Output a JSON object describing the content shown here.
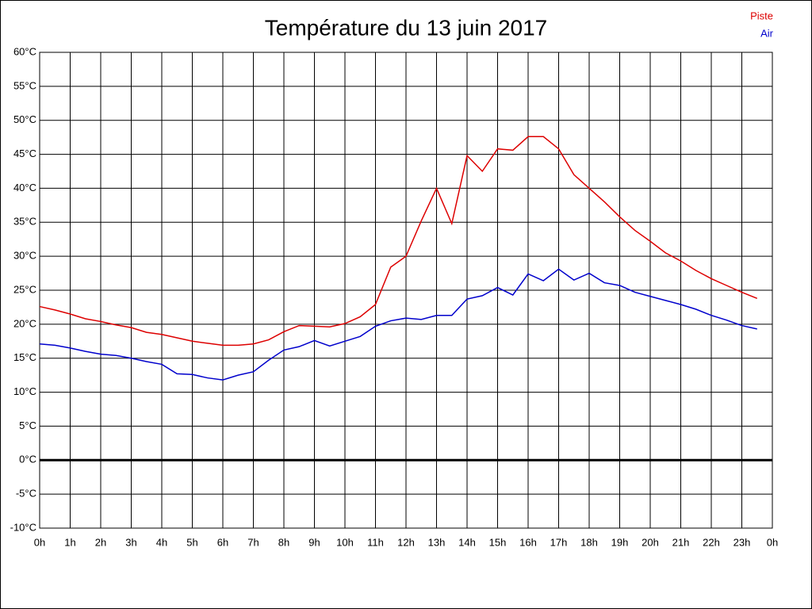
{
  "chart_data": {
    "type": "line",
    "title": "Température du 13 juin 2017",
    "x": [
      0,
      0.5,
      1,
      1.5,
      2,
      2.5,
      3,
      3.5,
      4,
      4.5,
      5,
      5.5,
      6,
      6.5,
      7,
      7.5,
      8,
      8.5,
      9,
      9.5,
      10,
      10.5,
      11,
      11.5,
      12,
      12.5,
      13,
      13.5,
      14,
      14.5,
      15,
      15.5,
      16,
      16.5,
      17,
      17.5,
      18,
      18.5,
      19,
      19.5,
      20,
      20.5,
      21,
      21.5,
      22,
      22.5,
      23,
      23.5
    ],
    "series": [
      {
        "name": "Piste",
        "color": "#dd0000",
        "values": [
          22.6,
          22.1,
          21.5,
          20.8,
          20.4,
          19.9,
          19.5,
          18.8,
          18.5,
          18.0,
          17.5,
          17.2,
          16.9,
          16.9,
          17.1,
          17.7,
          18.9,
          19.8,
          19.7,
          19.6,
          20.1,
          21.1,
          22.9,
          28.4,
          30.0,
          35.2,
          40.0,
          34.8,
          44.8,
          42.5,
          45.8,
          45.6,
          47.6,
          47.6,
          45.8,
          42.0,
          40.0,
          38.0,
          35.8,
          33.8,
          32.2,
          30.5,
          29.3,
          27.9,
          26.7,
          25.7,
          24.7,
          23.8
        ]
      },
      {
        "name": "Air",
        "color": "#0000cc",
        "values": [
          17.1,
          16.9,
          16.5,
          16.0,
          15.6,
          15.4,
          15.0,
          14.5,
          14.1,
          12.7,
          12.6,
          12.1,
          11.8,
          12.5,
          13.0,
          14.7,
          16.2,
          16.7,
          17.6,
          16.8,
          17.5,
          18.2,
          19.7,
          20.5,
          20.9,
          20.7,
          21.3,
          21.3,
          23.7,
          24.2,
          25.4,
          24.3,
          27.4,
          26.4,
          28.1,
          26.5,
          27.5,
          26.1,
          25.7,
          24.7,
          24.1,
          23.5,
          22.9,
          22.2,
          21.3,
          20.6,
          19.8,
          19.3
        ]
      }
    ],
    "xlim": [
      0,
      24
    ],
    "xticks": [
      {
        "value": 0,
        "label": "0h"
      },
      {
        "value": 1,
        "label": "1h"
      },
      {
        "value": 2,
        "label": "2h"
      },
      {
        "value": 3,
        "label": "3h"
      },
      {
        "value": 4,
        "label": "4h"
      },
      {
        "value": 5,
        "label": "5h"
      },
      {
        "value": 6,
        "label": "6h"
      },
      {
        "value": 7,
        "label": "7h"
      },
      {
        "value": 8,
        "label": "8h"
      },
      {
        "value": 9,
        "label": "9h"
      },
      {
        "value": 10,
        "label": "10h"
      },
      {
        "value": 11,
        "label": "11h"
      },
      {
        "value": 12,
        "label": "12h"
      },
      {
        "value": 13,
        "label": "13h"
      },
      {
        "value": 14,
        "label": "14h"
      },
      {
        "value": 15,
        "label": "15h"
      },
      {
        "value": 16,
        "label": "16h"
      },
      {
        "value": 17,
        "label": "17h"
      },
      {
        "value": 18,
        "label": "18h"
      },
      {
        "value": 19,
        "label": "19h"
      },
      {
        "value": 20,
        "label": "20h"
      },
      {
        "value": 21,
        "label": "21h"
      },
      {
        "value": 22,
        "label": "22h"
      },
      {
        "value": 23,
        "label": "23h"
      },
      {
        "value": 24,
        "label": "0h"
      }
    ],
    "ylim": [
      -10,
      60
    ],
    "yticks": [
      {
        "value": -10,
        "label": "-10°C"
      },
      {
        "value": -5,
        "label": "-5°C"
      },
      {
        "value": 0,
        "label": "0°C"
      },
      {
        "value": 5,
        "label": "5°C"
      },
      {
        "value": 10,
        "label": "10°C"
      },
      {
        "value": 15,
        "label": "15°C"
      },
      {
        "value": 20,
        "label": "20°C"
      },
      {
        "value": 25,
        "label": "25°C"
      },
      {
        "value": 30,
        "label": "30°C"
      },
      {
        "value": 35,
        "label": "35°C"
      },
      {
        "value": 40,
        "label": "40°C"
      },
      {
        "value": 45,
        "label": "45°C"
      },
      {
        "value": 50,
        "label": "50°C"
      },
      {
        "value": 55,
        "label": "55°C"
      },
      {
        "value": 60,
        "label": "60°C"
      }
    ],
    "grid": true,
    "legend": "top-right"
  }
}
